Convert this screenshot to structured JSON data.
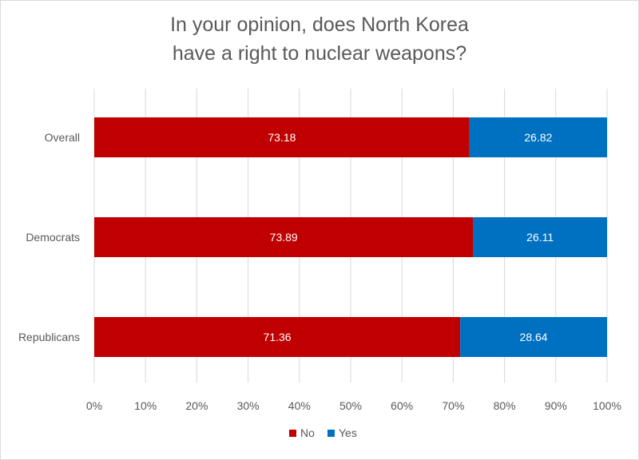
{
  "chart_data": {
    "type": "bar",
    "orientation": "horizontal",
    "stacked": true,
    "title": [
      "In your opinion, does North Korea",
      "have a right to nuclear weapons?"
    ],
    "categories": [
      "Overall",
      "Democrats",
      "Republicans"
    ],
    "series": [
      {
        "name": "No",
        "values": [
          73.18,
          73.89,
          71.36
        ],
        "color": "#c00000"
      },
      {
        "name": "Yes",
        "values": [
          26.82,
          26.11,
          28.64
        ],
        "color": "#0070c0"
      }
    ],
    "xlim": [
      0,
      100
    ],
    "x_ticks": [
      "0%",
      "10%",
      "20%",
      "30%",
      "40%",
      "50%",
      "60%",
      "70%",
      "80%",
      "90%",
      "100%"
    ],
    "grid": true,
    "legend_position": "bottom"
  }
}
